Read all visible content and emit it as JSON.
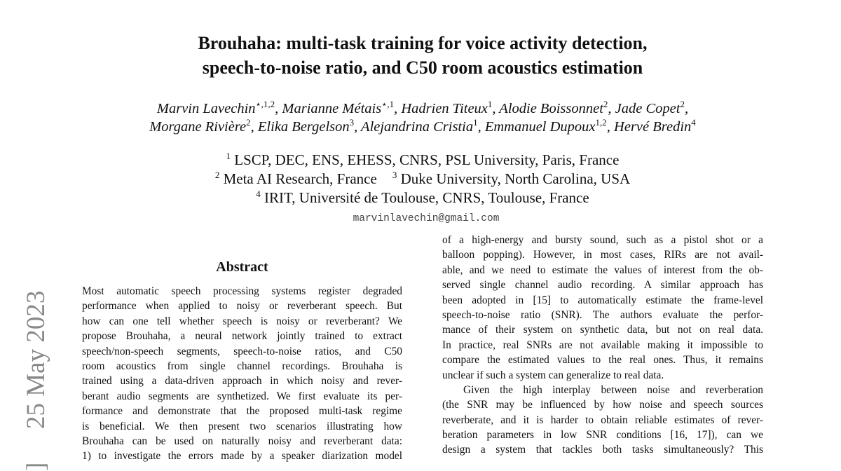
{
  "header": {
    "title": [
      "Brouhaha: multi-task training for voice activity detection,",
      "speech-to-noise ratio, and C50 room acoustics estimation"
    ],
    "authors": [
      [
        {
          "name": "Marvin Lavechin",
          "affil": "⋆,1,2",
          "sep": ","
        },
        {
          "name": "Marianne Métais",
          "affil": "⋆,1",
          "sep": ","
        },
        {
          "name": "Hadrien Titeux",
          "affil": "1",
          "sep": ","
        },
        {
          "name": "Alodie Boissonnet",
          "affil": "2",
          "sep": ","
        },
        {
          "name": "Jade Copet",
          "affil": "2",
          "sep": ","
        }
      ],
      [
        {
          "name": "Morgane Rivière",
          "affil": "2",
          "sep": ","
        },
        {
          "name": "Elika Bergelson",
          "affil": "3",
          "sep": ","
        },
        {
          "name": "Alejandrina Cristia",
          "affil": "1",
          "sep": ","
        },
        {
          "name": "Emmanuel Dupoux",
          "affil": "1,2",
          "sep": ","
        },
        {
          "name": "Hervé Bredin",
          "affil": "4"
        }
      ]
    ],
    "affiliations": [
      [
        {
          "sup": "1",
          "text": "LSCP, DEC, ENS, EHESS, CNRS, PSL University, Paris, France"
        }
      ],
      [
        {
          "sup": "2",
          "text": "Meta AI Research, France"
        },
        {
          "sup": "3",
          "text": "Duke University, North Carolina, USA"
        }
      ],
      [
        {
          "sup": "4",
          "text": "IRIT, Université de Toulouse, CNRS, Toulouse, France"
        }
      ]
    ],
    "email": "marvinlavechin@gmail.com"
  },
  "side_stamp": {
    "bracket": "]",
    "date": "25 May 2023"
  },
  "abstract": {
    "heading": "Abstract",
    "paragraphs": [
      [
        "Most automatic speech processing systems register degraded",
        "performance when applied to noisy or reverberant speech. But",
        "how can one tell whether speech is noisy or reverberant? We",
        "propose Brouhaha, a neural network jointly trained to extract",
        "speech/non-speech segments, speech-to-noise ratios, and C50",
        "room acoustics from single channel recordings. Brouhaha is",
        "trained using a data-driven approach in which noisy and rever-",
        "berant audio segments are synthetized. We first evaluate its per-",
        "formance and demonstrate that the proposed multi-task regime",
        "is beneficial. We then present two scenarios illustrating how",
        "Brouhaha can be used on naturally noisy and reverberant data:",
        "1) to investigate the errors made by a speaker diarization model"
      ]
    ]
  },
  "right_column": {
    "paragraphs": [
      [
        "of a high-energy and bursty sound, such as a pistol shot or a",
        "balloon popping). However, in most cases, RIRs are not avail-",
        "able, and we need to estimate the values of interest from the ob-",
        "served single channel audio recording. A similar approach has",
        "been adopted in [15] to automatically estimate the frame-level",
        "speech-to-noise ratio (SNR). The authors evaluate the perfor-",
        "mance of their system on synthetic data, but not on real data.",
        "In practice, real SNRs are not available making it impossible to",
        "compare the estimated values to the real ones. Thus, it remains",
        "unclear if such a system can generalize to real data."
      ],
      [
        "Given the high interplay between noise and reverberation",
        "(the SNR may be influenced by how noise and speech sources",
        "reverberate, and it is harder to obtain reliable estimates of rever-",
        "beration parameters in low SNR conditions [16, 17]), can we",
        "design a system that tackles both tasks simultaneously? This"
      ]
    ]
  }
}
